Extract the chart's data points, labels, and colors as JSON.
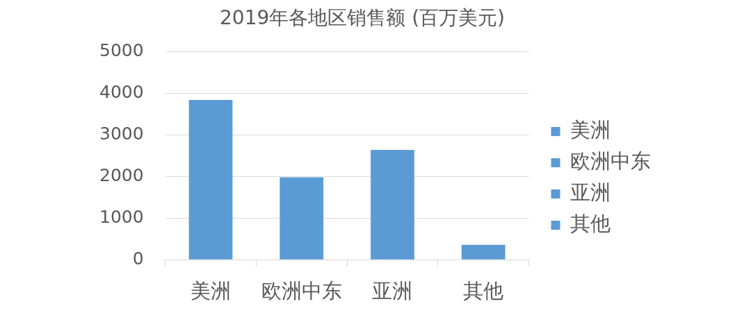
{
  "chart_data": {
    "type": "bar",
    "title": "2019年各地区销售额 (百万美元)",
    "categories": [
      "美洲",
      "欧洲中东",
      "亚洲",
      "其他"
    ],
    "series": [
      {
        "name": "美洲",
        "color": "#5b9bd5",
        "values": [
          3840,
          null,
          null,
          null
        ]
      },
      {
        "name": "欧洲中东",
        "color": "#5b9bd5",
        "values": [
          null,
          1980,
          null,
          null
        ]
      },
      {
        "name": "亚洲",
        "color": "#5b9bd5",
        "values": [
          null,
          null,
          2640,
          null
        ]
      },
      {
        "name": "其他",
        "color": "#5b9bd5",
        "values": [
          null,
          null,
          null,
          360
        ]
      }
    ],
    "ylim": [
      0,
      5000
    ],
    "yticks": [
      0,
      1000,
      2000,
      3000,
      4000,
      5000
    ],
    "grid": "y",
    "legend": "right"
  }
}
